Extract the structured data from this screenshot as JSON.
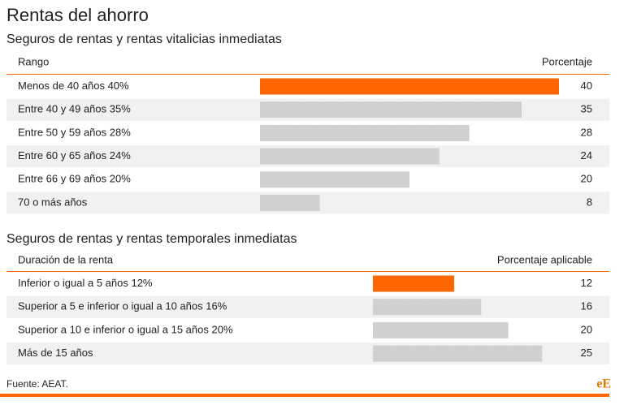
{
  "title": "Rentas del ahorro",
  "tables": [
    {
      "subtitle": "Seguros de rentas y rentas vitalicias inmediatas",
      "header": [
        "Rango",
        "Porcentaje"
      ],
      "rows": [
        {
          "label": "Menos de 40 años 40%",
          "value": 40
        },
        {
          "label": "Entre 40 y 49 años 35%",
          "value": 35
        },
        {
          "label": "Entre 50 y 59 años 28%",
          "value": 28
        },
        {
          "label": "Entre 60 y 65 años 24%",
          "value": 24
        },
        {
          "label": "Entre 66 y 69 años 20%",
          "value": 20
        },
        {
          "label": "70 o más años",
          "value": 8
        }
      ]
    },
    {
      "subtitle": "Seguros de rentas y rentas temporales inmediatas",
      "header": [
        "Duración de la renta",
        "Porcentaje aplicable"
      ],
      "rows": [
        {
          "label": "Inferior o igual a 5 años 12%",
          "value": 12
        },
        {
          "label": "Superior a 5 e inferior o igual a 10 años 16%",
          "value": 16
        },
        {
          "label": "Superior a 10 e inferior o igual a 15 años 20%",
          "value": 20
        },
        {
          "label": "Más de 15 años",
          "value": 25
        }
      ]
    }
  ],
  "highlight_color": "#ff6600",
  "bar_color": "#cccccc",
  "source": "Fuente: AEAT.",
  "logo": "eE"
}
